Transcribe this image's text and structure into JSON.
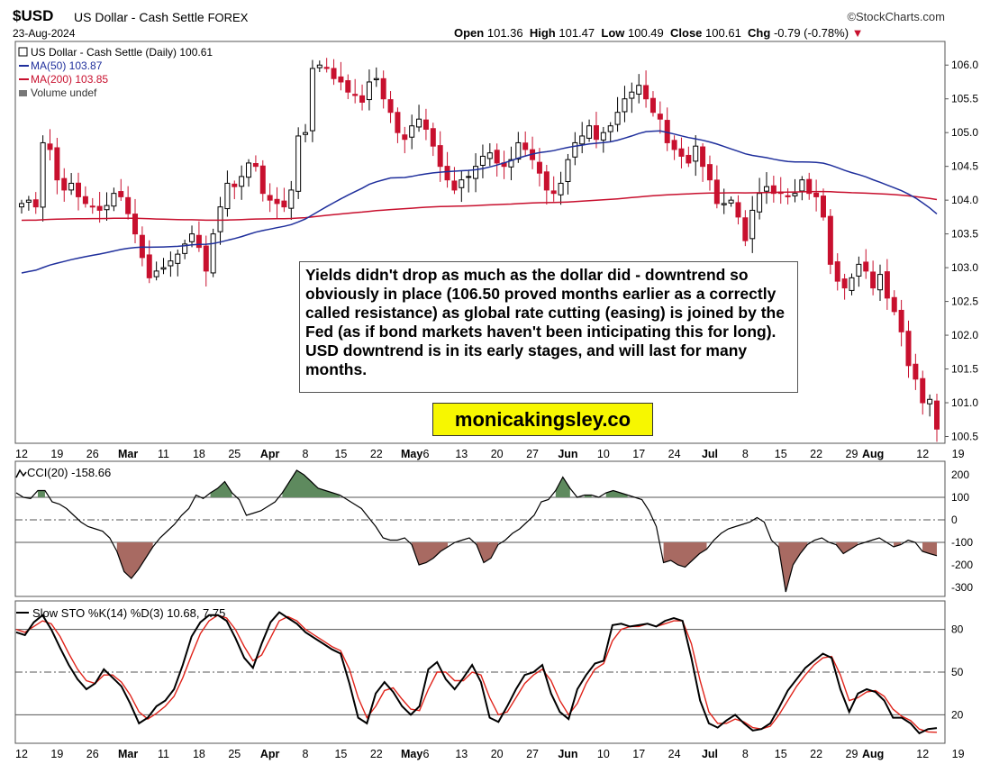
{
  "header": {
    "symbol": "$USD",
    "name": "US Dollar - Cash Settle",
    "market": "FOREX",
    "date": "23-Aug-2024",
    "brand": "©StockCharts.com",
    "open_label": "Open",
    "open": "101.36",
    "high_label": "High",
    "high": "101.47",
    "low_label": "Low",
    "low": "100.49",
    "close_label": "Close",
    "close": "100.61",
    "chg_label": "Chg",
    "chg": "-0.79 (-0.78%)"
  },
  "legend": {
    "price": "US Dollar - Cash Settle (Daily) 100.61",
    "ma50": "MA(50) 103.87",
    "ma200": "MA(200) 103.85",
    "volume": "Volume undef"
  },
  "annotation_text": "Yields didn't drop as much as the dollar did - downtrend so obviously in place (106.50 proved months earlier as a correctly called resistance) as global rate cutting (easing) is joined by the Fed (as if bond markets haven't been inticipating this for long). USD downtrend is in its early stages, and will last for many months.",
  "brand_box": "monicakingsley.co",
  "colors": {
    "up": "#000000",
    "down": "#c8102e",
    "ma50": "#1f2f9c",
    "ma200": "#c8102e",
    "cci_pos": "#5e8a5e",
    "cci_neg": "#a86a62",
    "stoch_k": "#000000",
    "stoch_d": "#e0241b"
  },
  "chart_data": [
    {
      "type": "candlestick",
      "title": "US Dollar - Cash Settle (Daily) 100.61",
      "ylim": [
        100.4,
        106.35
      ],
      "yticks": [
        100.5,
        101.0,
        101.5,
        102.0,
        102.5,
        103.0,
        103.5,
        104.0,
        104.5,
        105.0,
        105.5,
        106.0
      ],
      "x_ticks": [
        [
          "12",
          0
        ],
        [
          "19",
          5
        ],
        [
          "26",
          10
        ],
        [
          "Mar",
          15
        ],
        [
          "11",
          20
        ],
        [
          "18",
          25
        ],
        [
          "25",
          30
        ],
        [
          "Apr",
          35
        ],
        [
          "8",
          40
        ],
        [
          "15",
          45
        ],
        [
          "22",
          50
        ],
        [
          "May",
          55
        ],
        [
          "6",
          57
        ],
        [
          "13",
          62
        ],
        [
          "20",
          67
        ],
        [
          "27",
          72
        ],
        [
          "Jun",
          77
        ],
        [
          "10",
          82
        ],
        [
          "17",
          87
        ],
        [
          "24",
          92
        ],
        [
          "Jul",
          97
        ],
        [
          "8",
          102
        ],
        [
          "15",
          107
        ],
        [
          "22",
          112
        ],
        [
          "29",
          117
        ],
        [
          "Aug",
          120
        ],
        [
          "12",
          127
        ],
        [
          "19",
          132
        ]
      ],
      "series": [
        {
          "name": "US Dollar - Cash Settle",
          "close": [
            103.95,
            104.0,
            103.9,
            104.85,
            104.75,
            104.3,
            104.15,
            104.25,
            104.05,
            103.95,
            103.9,
            103.85,
            103.92,
            104.1,
            104.05,
            103.8,
            103.5,
            103.15,
            102.85,
            102.95,
            103.0,
            103.1,
            103.2,
            103.35,
            103.5,
            103.3,
            102.95,
            103.5,
            103.9,
            104.25,
            104.2,
            104.35,
            104.55,
            104.5,
            104.1,
            104.0,
            103.95,
            103.9,
            104.15,
            104.95,
            105.0,
            105.95,
            106.0,
            105.95,
            105.8,
            105.75,
            105.6,
            105.55,
            105.45,
            105.75,
            105.8,
            105.5,
            105.3,
            105.0,
            104.9,
            105.1,
            105.2,
            105.05,
            104.8,
            104.5,
            104.3,
            104.15,
            104.3,
            104.35,
            104.5,
            104.65,
            104.7,
            104.55,
            104.5,
            104.6,
            104.85,
            104.75,
            104.6,
            104.4,
            104.15,
            104.1,
            104.25,
            104.6,
            104.85,
            104.95,
            105.1,
            104.9,
            105.0,
            105.1,
            105.3,
            105.5,
            105.6,
            105.7,
            105.5,
            105.3,
            105.2,
            104.85,
            104.75,
            104.65,
            104.55,
            104.8,
            104.5,
            104.3,
            103.95,
            103.95,
            104.0,
            103.75,
            103.4,
            103.85,
            104.1,
            104.2,
            104.1,
            104.1,
            104.05,
            104.1,
            104.3,
            104.1,
            104.05,
            103.75,
            103.05,
            102.8,
            102.7,
            102.85,
            103.05,
            102.95,
            102.7,
            102.9,
            102.55,
            102.35,
            102.05,
            101.55,
            101.35,
            101.0,
            101.05,
            100.61
          ]
        }
      ]
    },
    {
      "type": "line",
      "title": "CCI(20) -158.66",
      "ylim": [
        -340,
        260
      ],
      "yticks": [
        200,
        100,
        0,
        -100,
        -200,
        -300
      ],
      "series": [
        {
          "name": "CCI(20) -158.66",
          "values": [
            120,
            100,
            95,
            130,
            130,
            80,
            70,
            50,
            20,
            -10,
            -30,
            -40,
            -50,
            -80,
            -140,
            -230,
            -260,
            -220,
            -170,
            -120,
            -80,
            -50,
            -20,
            20,
            50,
            110,
            95,
            120,
            140,
            170,
            120,
            90,
            20,
            30,
            40,
            60,
            80,
            120,
            170,
            220,
            200,
            170,
            140,
            130,
            120,
            110,
            90,
            70,
            50,
            10,
            -30,
            -80,
            -90,
            -90,
            -80,
            -110,
            -200,
            -190,
            -170,
            -140,
            -120,
            -100,
            -90,
            -80,
            -110,
            -190,
            -170,
            -110,
            -90,
            -60,
            -40,
            -10,
            20,
            80,
            90,
            130,
            190,
            140,
            100,
            110,
            110,
            100,
            120,
            130,
            120,
            110,
            100,
            90,
            40,
            -30,
            -190,
            -180,
            -200,
            -210,
            -180,
            -150,
            -130,
            -90,
            -60,
            -40,
            -30,
            -20,
            -10,
            10,
            -10,
            -90,
            -120,
            -320,
            -200,
            -150,
            -110,
            -90,
            -80,
            -100,
            -110,
            -150,
            -130,
            -110,
            -100,
            -90,
            -80,
            -100,
            -120,
            -110,
            -90,
            -100,
            -140,
            -150,
            -159
          ]
        }
      ]
    },
    {
      "type": "line",
      "title": "Slow STO %K(14) %D(3) 10.68, 7.75",
      "ylim": [
        0,
        100
      ],
      "yticks": [
        80,
        50,
        20
      ],
      "series": [
        {
          "name": "%K(14) 10.68",
          "values": [
            78,
            76,
            85,
            90,
            80,
            67,
            55,
            45,
            38,
            42,
            52,
            46,
            40,
            28,
            14,
            18,
            26,
            30,
            38,
            55,
            75,
            85,
            90,
            90,
            86,
            74,
            60,
            53,
            70,
            85,
            92,
            88,
            84,
            78,
            74,
            70,
            66,
            63,
            42,
            18,
            14,
            35,
            43,
            36,
            26,
            20,
            26,
            52,
            57,
            45,
            38,
            46,
            55,
            43,
            18,
            15,
            26,
            38,
            48,
            50,
            55,
            35,
            22,
            17,
            38,
            48,
            56,
            58,
            83,
            84,
            82,
            83,
            84,
            82,
            86,
            88,
            86,
            60,
            30,
            14,
            11,
            16,
            20,
            14,
            9,
            10,
            14,
            25,
            37,
            45,
            53,
            58,
            63,
            60,
            38,
            22,
            35,
            38,
            36,
            30,
            18,
            18,
            14,
            7,
            10,
            10.68
          ]
        },
        {
          "name": "%D(3) 7.75",
          "values": [
            80,
            78,
            82,
            86,
            84,
            75,
            63,
            52,
            44,
            42,
            48,
            48,
            43,
            34,
            22,
            17,
            21,
            26,
            33,
            46,
            62,
            77,
            86,
            90,
            88,
            80,
            68,
            58,
            62,
            74,
            86,
            89,
            86,
            80,
            76,
            72,
            68,
            65,
            52,
            32,
            18,
            26,
            37,
            39,
            31,
            24,
            23,
            38,
            50,
            50,
            44,
            44,
            50,
            48,
            32,
            20,
            22,
            32,
            42,
            48,
            52,
            44,
            30,
            20,
            28,
            42,
            52,
            56,
            72,
            80,
            82,
            82,
            84,
            82,
            84,
            86,
            86,
            70,
            44,
            22,
            14,
            14,
            17,
            15,
            11,
            10,
            12,
            20,
            30,
            40,
            48,
            55,
            60,
            61,
            48,
            30,
            32,
            36,
            37,
            33,
            24,
            19,
            16,
            10,
            8,
            7.75
          ]
        }
      ]
    }
  ],
  "stoch_x_ticks": [
    [
      "12",
      0
    ],
    [
      "19",
      5
    ],
    [
      "26",
      10
    ],
    [
      "Mar",
      15
    ],
    [
      "11",
      20
    ],
    [
      "18",
      25
    ],
    [
      "25",
      30
    ],
    [
      "Apr",
      35
    ],
    [
      "8",
      40
    ],
    [
      "15",
      45
    ],
    [
      "22",
      50
    ],
    [
      "May",
      55
    ],
    [
      "6",
      57
    ],
    [
      "13",
      62
    ],
    [
      "20",
      67
    ],
    [
      "27",
      72
    ],
    [
      "Jun",
      77
    ],
    [
      "10",
      82
    ],
    [
      "17",
      87
    ],
    [
      "24",
      92
    ],
    [
      "Jul",
      97
    ],
    [
      "8",
      102
    ],
    [
      "15",
      107
    ],
    [
      "22",
      112
    ],
    [
      "29",
      117
    ],
    [
      "Aug",
      120
    ],
    [
      "12",
      127
    ],
    [
      "19",
      132
    ]
  ]
}
